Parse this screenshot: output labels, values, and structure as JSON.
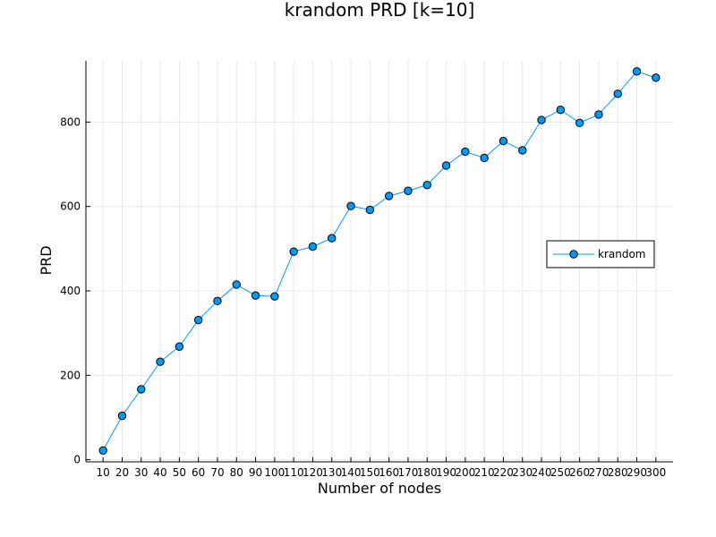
{
  "chart_data": {
    "type": "line",
    "title": "krandom PRD [k=10]",
    "xlabel": "Number of nodes",
    "ylabel": "PRD",
    "x": [
      10,
      20,
      30,
      40,
      50,
      60,
      70,
      80,
      90,
      100,
      110,
      120,
      130,
      140,
      150,
      160,
      170,
      180,
      190,
      200,
      210,
      220,
      230,
      240,
      250,
      260,
      270,
      280,
      290,
      300
    ],
    "series": [
      {
        "name": "krandom",
        "values": [
          22,
          104,
          167,
          232,
          268,
          331,
          376,
          415,
          389,
          387,
          493,
          505,
          525,
          601,
          592,
          625,
          637,
          651,
          697,
          730,
          715,
          755,
          733,
          805,
          829,
          798,
          818,
          867,
          920,
          905
        ],
        "color": "#009af9",
        "marker": "circle"
      }
    ],
    "xticks": [
      "10",
      "20",
      "30",
      "40",
      "50",
      "60",
      "70",
      "80",
      "90",
      "100",
      "110",
      "120",
      "130",
      "140",
      "150",
      "160",
      "170",
      "180",
      "190",
      "200",
      "210",
      "220",
      "230",
      "240",
      "250",
      "260",
      "270",
      "280",
      "290",
      "300"
    ],
    "yticks": [
      0,
      200,
      400,
      600,
      800
    ],
    "xlim": [
      1,
      309
    ],
    "ylim": [
      -5,
      945
    ],
    "grid": true,
    "legend_position": "right"
  }
}
